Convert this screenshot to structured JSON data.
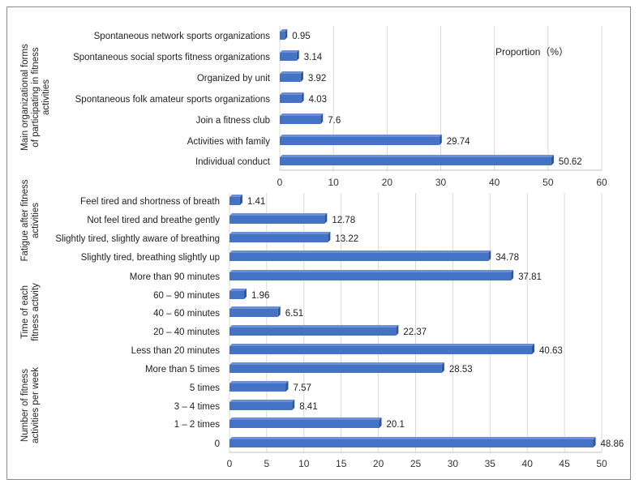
{
  "chart_data": {
    "type": "bar",
    "orientation": "horizontal",
    "legend_label": "Proportion（%）",
    "panels": [
      {
        "axis": {
          "min": 0,
          "max": 60,
          "step": 10
        },
        "groups": [
          {
            "title": "Main organizational forms of participating in fitness activities",
            "title_lines": [
              "Main organizational forms",
              "of participating in fitness",
              "activities"
            ],
            "categories": [
              "Spontaneous network sports organizations",
              "Spontaneous social sports fitness organizations",
              "Organized by unit",
              "Spontaneous folk amateur sports organizations",
              "Join a fitness club",
              "Activities with family",
              "Individual conduct"
            ],
            "values": [
              0.95,
              3.14,
              3.92,
              4.03,
              7.6,
              29.74,
              50.62
            ]
          }
        ]
      },
      {
        "axis": {
          "min": 0,
          "max": 50,
          "step": 5
        },
        "groups": [
          {
            "title": "Fatigue after fitness activities",
            "title_lines": [
              "Fatigue after fitness",
              "activities"
            ],
            "categories": [
              "Feel tired and shortness of breath",
              "Not feel tired and breathe gently",
              "Slightly tired, slightly aware of breathing",
              "Slightly tired, breathing slightly up"
            ],
            "values": [
              1.41,
              12.78,
              13.22,
              34.78
            ]
          },
          {
            "title": "Time of each fitness activity",
            "title_lines": [
              "Time of each",
              "fitness activity"
            ],
            "categories": [
              "More than 90 minutes",
              "60 – 90 minutes",
              "40 – 60 minutes",
              "20 – 40 minutes",
              "Less than 20 minutes"
            ],
            "values": [
              37.81,
              1.96,
              6.51,
              22.37,
              40.63
            ]
          },
          {
            "title": "Number of fitness activities per week",
            "title_lines": [
              "Number of fitness",
              "activities per week"
            ],
            "categories": [
              "More than 5 times",
              "5 times",
              "3 – 4 times",
              "1 – 2 times",
              "0"
            ],
            "values": [
              28.53,
              7.57,
              8.41,
              20.1,
              48.86
            ]
          }
        ]
      }
    ],
    "colors": {
      "bar": "#4472C4",
      "bar_side": "#2E5597",
      "bar_top": "#6D8FD6",
      "grid": "#d9d9d9",
      "axis": "#bfbfbf"
    }
  }
}
